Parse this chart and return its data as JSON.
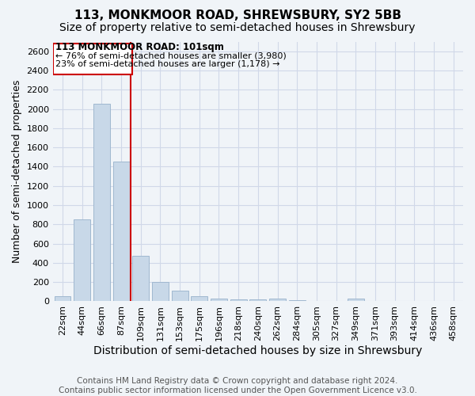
{
  "title": "113, MONKMOOR ROAD, SHREWSBURY, SY2 5BB",
  "subtitle": "Size of property relative to semi-detached houses in Shrewsbury",
  "xlabel": "Distribution of semi-detached houses by size in Shrewsbury",
  "ylabel": "Number of semi-detached properties",
  "footnote": "Contains HM Land Registry data © Crown copyright and database right 2024.\nContains public sector information licensed under the Open Government Licence v3.0.",
  "bar_labels": [
    "22sqm",
    "44sqm",
    "66sqm",
    "87sqm",
    "109sqm",
    "131sqm",
    "153sqm",
    "175sqm",
    "196sqm",
    "218sqm",
    "240sqm",
    "262sqm",
    "284sqm",
    "305sqm",
    "327sqm",
    "349sqm",
    "371sqm",
    "393sqm",
    "414sqm",
    "436sqm",
    "458sqm"
  ],
  "bar_values": [
    50,
    850,
    2050,
    1450,
    470,
    200,
    110,
    50,
    30,
    20,
    20,
    30,
    10,
    0,
    0,
    30,
    0,
    0,
    0,
    0,
    0
  ],
  "bar_color": "#c8d8e8",
  "bar_edge_color": "#a0b8d0",
  "grid_color": "#d0d8e8",
  "background_color": "#f0f4f8",
  "red_line_x": 3.5,
  "annotation_line1": "113 MONKMOOR ROAD: 101sqm",
  "annotation_line2": "← 76% of semi-detached houses are smaller (3,980)",
  "annotation_line3": "23% of semi-detached houses are larger (1,178) →",
  "annotation_box_color": "#cc0000",
  "ylim": [
    0,
    2700
  ],
  "yticks": [
    0,
    200,
    400,
    600,
    800,
    1000,
    1200,
    1400,
    1600,
    1800,
    2000,
    2200,
    2400,
    2600
  ],
  "title_fontsize": 11,
  "subtitle_fontsize": 10,
  "xlabel_fontsize": 10,
  "ylabel_fontsize": 9,
  "tick_fontsize": 8,
  "annotation_fontsize": 8.5,
  "footnote_fontsize": 7.5
}
